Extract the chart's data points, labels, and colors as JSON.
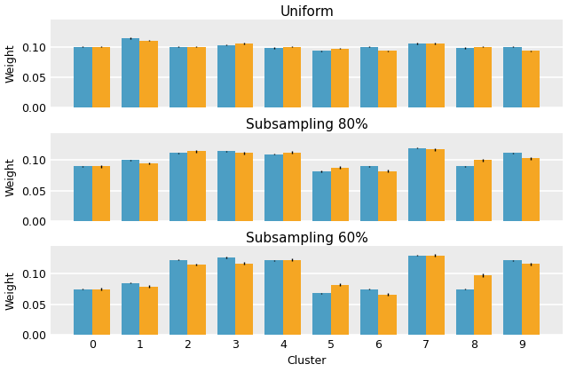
{
  "subplots": [
    {
      "title": "Uniform",
      "blue": [
        0.1,
        0.114,
        0.1,
        0.103,
        0.098,
        0.093,
        0.1,
        0.105,
        0.098,
        0.1
      ],
      "orange": [
        0.1,
        0.11,
        0.1,
        0.105,
        0.1,
        0.097,
        0.093,
        0.105,
        0.1,
        0.093
      ],
      "blue_err": [
        0.001,
        0.001,
        0.001,
        0.001,
        0.001,
        0.001,
        0.001,
        0.001,
        0.001,
        0.001
      ],
      "orange_err": [
        0.001,
        0.001,
        0.001,
        0.001,
        0.001,
        0.001,
        0.001,
        0.001,
        0.001,
        0.001
      ]
    },
    {
      "title": "Subsampling 80%",
      "blue": [
        0.09,
        0.1,
        0.112,
        0.115,
        0.11,
        0.082,
        0.09,
        0.12,
        0.09,
        0.112
      ],
      "orange": [
        0.09,
        0.095,
        0.115,
        0.112,
        0.113,
        0.088,
        0.082,
        0.118,
        0.1,
        0.103
      ],
      "blue_err": [
        0.001,
        0.001,
        0.001,
        0.001,
        0.001,
        0.001,
        0.001,
        0.001,
        0.001,
        0.001
      ],
      "orange_err": [
        0.002,
        0.002,
        0.002,
        0.002,
        0.002,
        0.002,
        0.002,
        0.002,
        0.002,
        0.002
      ]
    },
    {
      "title": "Subsampling 60%",
      "blue": [
        0.075,
        0.085,
        0.123,
        0.127,
        0.122,
        0.068,
        0.075,
        0.13,
        0.075,
        0.122
      ],
      "orange": [
        0.075,
        0.079,
        0.115,
        0.117,
        0.123,
        0.082,
        0.066,
        0.13,
        0.097,
        0.116
      ],
      "blue_err": [
        0.001,
        0.001,
        0.001,
        0.001,
        0.001,
        0.001,
        0.001,
        0.001,
        0.001,
        0.001
      ],
      "orange_err": [
        0.002,
        0.002,
        0.002,
        0.002,
        0.002,
        0.002,
        0.002,
        0.002,
        0.003,
        0.002
      ]
    }
  ],
  "clusters": [
    0,
    1,
    2,
    3,
    4,
    5,
    6,
    7,
    8,
    9
  ],
  "bar_width": 0.38,
  "blue_color": "#4C9EC4",
  "orange_color": "#F5A623",
  "bg_color": "#EBEBEB",
  "ylabel": "Weight",
  "xlabel": "Cluster",
  "ylim": [
    0.0,
    0.145
  ],
  "yticks": [
    0.0,
    0.05,
    0.1
  ],
  "figsize": [
    6.4,
    4.19
  ],
  "dpi": 100,
  "title_fontsize": 11,
  "label_fontsize": 9,
  "tick_fontsize": 9
}
